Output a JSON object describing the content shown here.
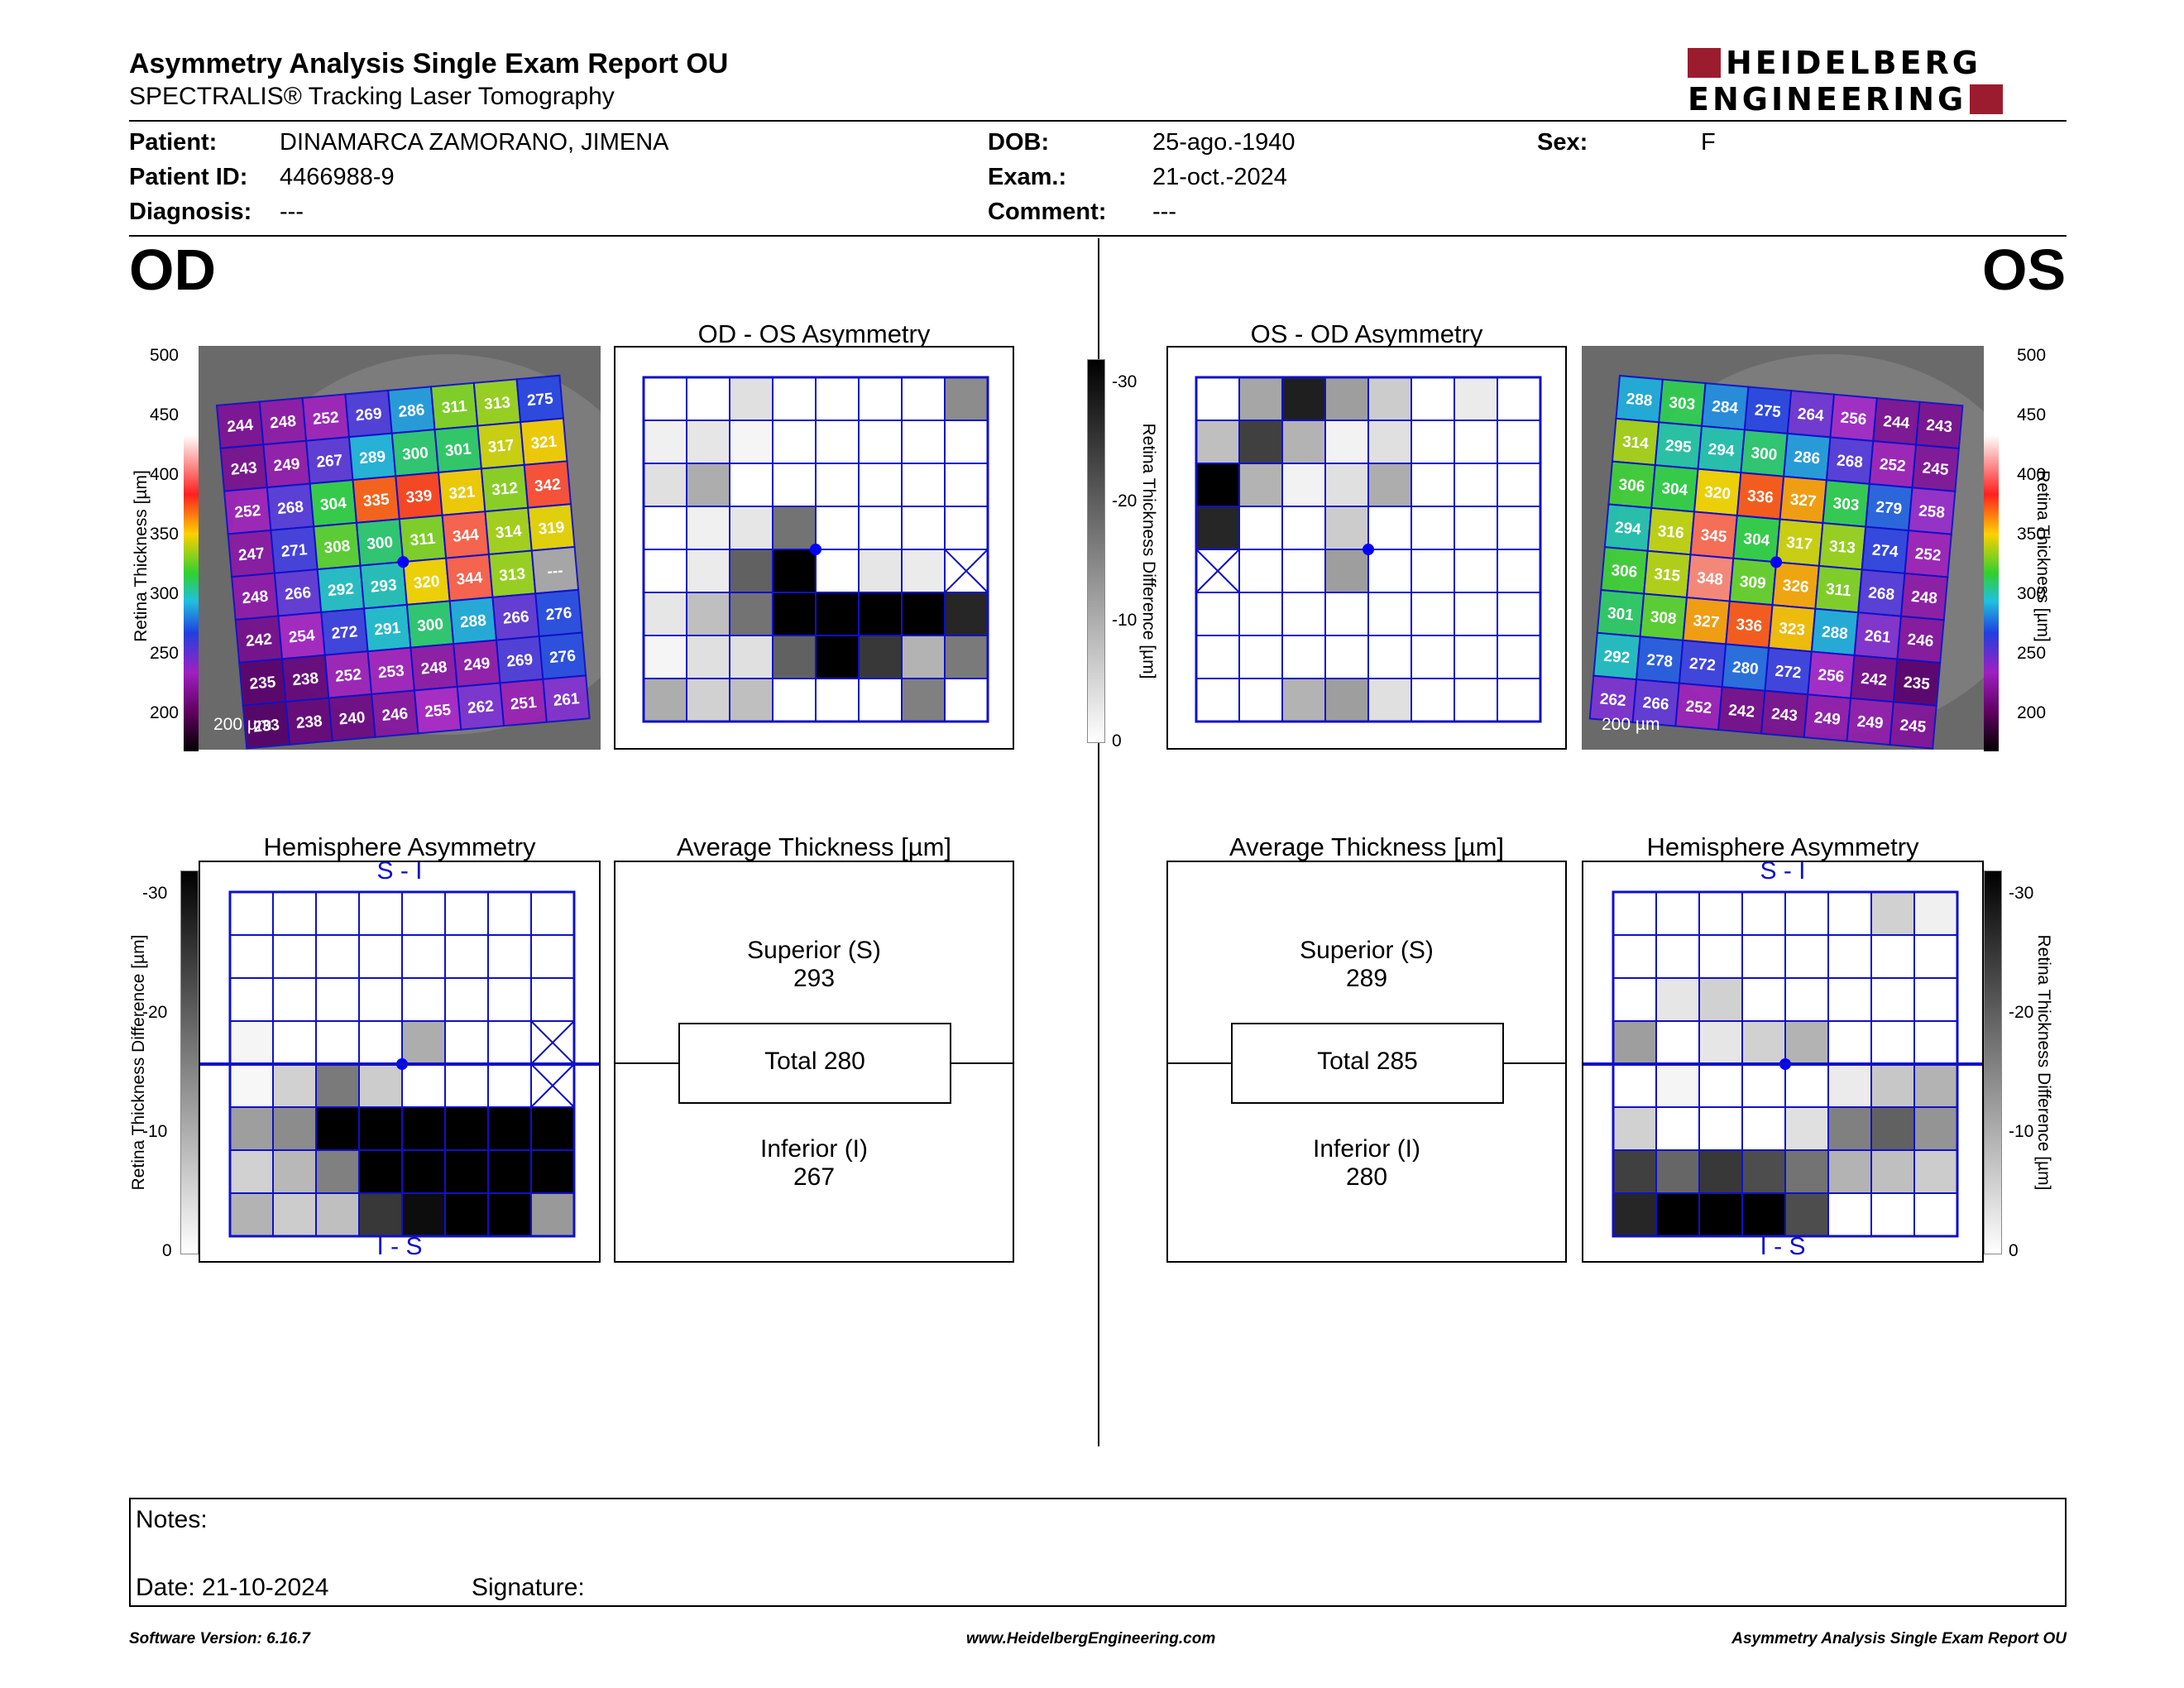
{
  "header": {
    "title": "Asymmetry Analysis Single Exam Report OU",
    "subtitle": "SPECTRALIS® Tracking Laser Tomography",
    "logo_line1": "HEIDELBERG",
    "logo_line2": "ENGINEERING"
  },
  "patient": {
    "patient_label": "Patient:",
    "patient_value": "DINAMARCA ZAMORANO, JIMENA",
    "id_label": "Patient ID:",
    "id_value": "4466988-9",
    "diagnosis_label": "Diagnosis:",
    "diagnosis_value": "---",
    "dob_label": "DOB:",
    "dob_value": "25-ago.-1940",
    "exam_label": "Exam.:",
    "exam_value": "21-oct.-2024",
    "comment_label": "Comment:",
    "comment_value": "---",
    "sex_label": "Sex:",
    "sex_value": "F"
  },
  "od": {
    "eye_label": "OD",
    "asym_title": "OD - OS Asymmetry",
    "hemi_title": "Hemisphere Asymmetry",
    "avg_title": "Average Thickness [µm]",
    "superior_label": "Superior (S)",
    "superior_value": "293",
    "total_label": "Total 280",
    "inferior_label": "Inferior (I)",
    "inferior_value": "267",
    "scale_bar": "200 µm",
    "hemi_top": "S - I",
    "hemi_bottom": "I - S",
    "thickness": [
      [
        244,
        248,
        252,
        269,
        286,
        311,
        313,
        275
      ],
      [
        243,
        249,
        267,
        289,
        300,
        301,
        317,
        321
      ],
      [
        252,
        268,
        304,
        335,
        339,
        321,
        312,
        342
      ],
      [
        247,
        271,
        308,
        300,
        311,
        344,
        314,
        319
      ],
      [
        248,
        266,
        292,
        293,
        320,
        344,
        313,
        "---"
      ],
      [
        242,
        254,
        272,
        291,
        300,
        288,
        266,
        276
      ],
      [
        235,
        238,
        252,
        253,
        248,
        249,
        269,
        276
      ],
      [
        233,
        238,
        240,
        246,
        255,
        262,
        251,
        261
      ]
    ],
    "asym_grid": [
      [
        0,
        0,
        0.12,
        0,
        0,
        0,
        0,
        0.45
      ],
      [
        0.06,
        0.1,
        0.04,
        0,
        0,
        0,
        0,
        0
      ],
      [
        0.12,
        0.32,
        0,
        0,
        0,
        0,
        0,
        0
      ],
      [
        0,
        0.06,
        0.1,
        0.55,
        0,
        0,
        0,
        0
      ],
      [
        0,
        0.08,
        0.62,
        1,
        0,
        0.1,
        0.08,
        "x"
      ],
      [
        0.1,
        0.25,
        0.55,
        1,
        1,
        1,
        1,
        0.85
      ],
      [
        0.04,
        0.12,
        0.12,
        0.62,
        1,
        0.78,
        0.3,
        0.52
      ],
      [
        0.32,
        0.18,
        0.25,
        0,
        0,
        0,
        0.5,
        0
      ]
    ],
    "hemi_grid": [
      [
        0,
        0,
        0,
        0,
        0,
        0,
        0,
        0
      ],
      [
        0,
        0,
        0,
        0,
        0,
        0,
        0,
        0
      ],
      [
        0,
        0,
        0,
        0,
        0,
        0,
        0,
        0
      ],
      [
        0.04,
        0,
        0,
        0,
        0.32,
        0,
        0,
        "x"
      ],
      [
        0.03,
        0.18,
        0.52,
        0.2,
        0,
        0,
        0,
        "x"
      ],
      [
        0.38,
        0.45,
        1,
        1,
        1,
        1,
        1,
        1
      ],
      [
        0.18,
        0.28,
        0.5,
        1,
        1,
        1,
        1,
        1
      ],
      [
        0.3,
        0.2,
        0.25,
        0.78,
        0.95,
        1,
        1,
        0.4
      ]
    ]
  },
  "os": {
    "eye_label": "OS",
    "asym_title": "OS - OD Asymmetry",
    "hemi_title": "Hemisphere Asymmetry",
    "avg_title": "Average Thickness [µm]",
    "superior_label": "Superior (S)",
    "superior_value": "289",
    "total_label": "Total 285",
    "inferior_label": "Inferior (I)",
    "inferior_value": "280",
    "scale_bar": "200 µm",
    "hemi_top": "S - I",
    "hemi_bottom": "I - S",
    "thickness": [
      [
        288,
        303,
        284,
        275,
        264,
        256,
        244,
        243
      ],
      [
        314,
        295,
        294,
        300,
        286,
        268,
        252,
        245
      ],
      [
        306,
        304,
        320,
        336,
        327,
        303,
        279,
        258
      ],
      [
        294,
        316,
        345,
        304,
        317,
        313,
        274,
        252
      ],
      [
        306,
        315,
        348,
        309,
        326,
        311,
        268,
        248
      ],
      [
        301,
        308,
        327,
        336,
        323,
        288,
        261,
        246
      ],
      [
        292,
        278,
        272,
        280,
        272,
        256,
        242,
        235
      ],
      [
        262,
        266,
        252,
        242,
        243,
        249,
        249,
        245
      ]
    ],
    "asym_grid": [
      [
        0,
        0.35,
        0.88,
        0.38,
        0.2,
        0,
        0.08,
        0
      ],
      [
        0.25,
        0.75,
        0.3,
        0.05,
        0.12,
        0,
        0,
        0
      ],
      [
        1,
        0.3,
        0.05,
        0.12,
        0.32,
        0,
        0,
        0
      ],
      [
        0.85,
        0,
        0,
        0.2,
        0,
        0,
        0,
        0
      ],
      [
        "x",
        0,
        0,
        0.38,
        0,
        0,
        0,
        0
      ],
      [
        0,
        0,
        0,
        0,
        0,
        0,
        0,
        0
      ],
      [
        0,
        0,
        0,
        0,
        0,
        0,
        0,
        0
      ],
      [
        0,
        0,
        0.3,
        0.38,
        0.12,
        0,
        0,
        0
      ]
    ],
    "hemi_grid": [
      [
        0,
        0,
        0,
        0,
        0,
        0,
        0.18,
        0.06
      ],
      [
        0,
        0,
        0,
        0,
        0,
        0,
        0,
        0
      ],
      [
        0,
        0.1,
        0.18,
        0,
        0,
        0,
        0,
        0
      ],
      [
        0.38,
        0,
        0.1,
        0.18,
        0.3,
        0,
        0,
        0
      ],
      [
        0,
        0.04,
        0,
        0,
        0,
        0.08,
        0.22,
        0.3
      ],
      [
        0.18,
        0,
        0,
        0,
        0.12,
        0.5,
        0.62,
        0.42
      ],
      [
        0.75,
        0.6,
        0.78,
        0.7,
        0.55,
        0.3,
        0.25,
        0.2
      ],
      [
        0.85,
        1,
        1,
        1,
        0.7,
        0,
        0,
        0
      ]
    ]
  },
  "thickness_scale": {
    "ticks": [
      "500",
      "450",
      "400",
      "350",
      "300",
      "250",
      "200"
    ],
    "label": "Retina  Thickness [µm]"
  },
  "diff_scale": {
    "ticks": [
      "-30",
      "-20",
      "-10",
      "0"
    ],
    "label": "Retina Thickness Difference [µm]"
  },
  "notes": {
    "notes_label": "Notes:",
    "date_label": "Date: 21-10-2024",
    "signature_label": "Signature:"
  },
  "footer": {
    "version": "Software Version: 6.16.7",
    "website": "www.HeidelbergEngineering.com",
    "report": "Asymmetry Analysis Single Exam Report OU"
  },
  "colors": {
    "grid_line": "#1010c8",
    "logo_red": "#9b1c2e",
    "center_dot": "#0000ff"
  }
}
